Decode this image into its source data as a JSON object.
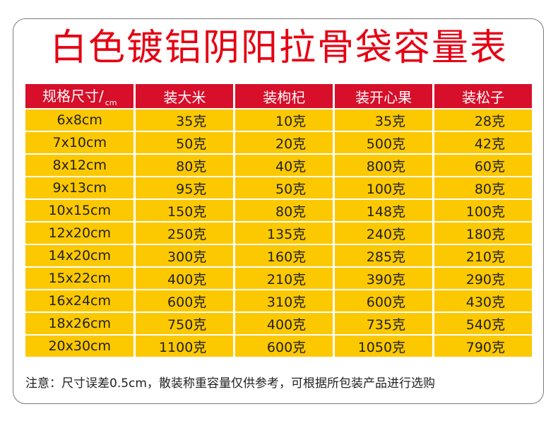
{
  "title": "白色镀铝阴阳拉骨袋容量表",
  "header": {
    "spec_label": "规格尺寸/",
    "spec_unit": "cm",
    "col1": "装大米",
    "col2": "装枸杞",
    "col3": "装开心果",
    "col4": "装松子"
  },
  "rows": [
    {
      "size": "6x8cm",
      "rice": "35克",
      "goji": "10克",
      "pistachio": "35克",
      "pine": "28克"
    },
    {
      "size": "7x10cm",
      "rice": "50克",
      "goji": "20克",
      "pistachio": "500克",
      "pine": "42克"
    },
    {
      "size": "8x12cm",
      "rice": "80克",
      "goji": "40克",
      "pistachio": "800克",
      "pine": "60克"
    },
    {
      "size": "9x13cm",
      "rice": "95克",
      "goji": "50克",
      "pistachio": "100克",
      "pine": "80克"
    },
    {
      "size": "10x15cm",
      "rice": "150克",
      "goji": "80克",
      "pistachio": "148克",
      "pine": "100克"
    },
    {
      "size": "12x20cm",
      "rice": "250克",
      "goji": "135克",
      "pistachio": "240克",
      "pine": "180克"
    },
    {
      "size": "14x20cm",
      "rice": "300克",
      "goji": "160克",
      "pistachio": "285克",
      "pine": "210克"
    },
    {
      "size": "15x22cm",
      "rice": "400克",
      "goji": "210克",
      "pistachio": "390克",
      "pine": "290克"
    },
    {
      "size": "16x24cm",
      "rice": "600克",
      "goji": "310克",
      "pistachio": "600克",
      "pine": "430克"
    },
    {
      "size": "18x26cm",
      "rice": "750克",
      "goji": "400克",
      "pistachio": "735克",
      "pine": "540克"
    },
    {
      "size": "20x30cm",
      "rice": "1100克",
      "goji": "600克",
      "pistachio": "1050克",
      "pine": "790克"
    }
  ],
  "note": "注意：尺寸误差0.5cm，散装称重容量仅供参考，可根据所包装产品进行选购",
  "colors": {
    "title": "#e60013",
    "header_bg": "#d70f2a",
    "cell_bg": "#fcc800"
  }
}
